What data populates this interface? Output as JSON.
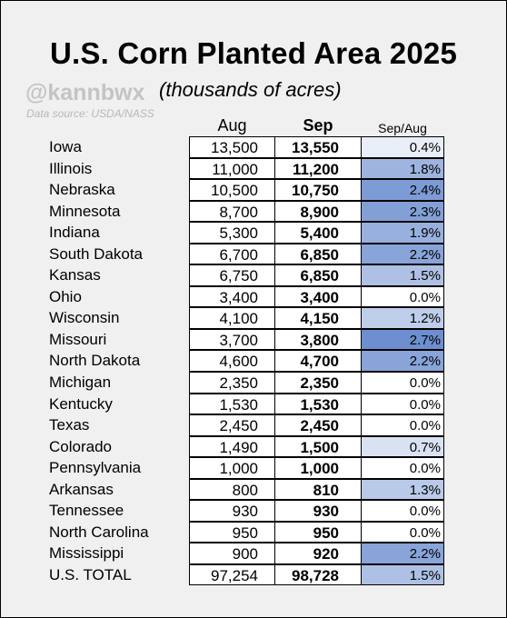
{
  "title": "U.S. Corn Planted Area 2025",
  "handle": "@kannbwx",
  "subtitle": "(thousands of acres)",
  "source": "Data source: USDA/NASS",
  "chart_data": {
    "type": "table",
    "columns": [
      "Aug",
      "Sep",
      "Sep/Aug"
    ],
    "rows": [
      {
        "state": "Iowa",
        "aug": "13,500",
        "sep": "13,550",
        "pct": "0.4%"
      },
      {
        "state": "Illinois",
        "aug": "11,000",
        "sep": "11,200",
        "pct": "1.8%"
      },
      {
        "state": "Nebraska",
        "aug": "10,500",
        "sep": "10,750",
        "pct": "2.4%"
      },
      {
        "state": "Minnesota",
        "aug": "8,700",
        "sep": "8,900",
        "pct": "2.3%"
      },
      {
        "state": "Indiana",
        "aug": "5,300",
        "sep": "5,400",
        "pct": "1.9%"
      },
      {
        "state": "South Dakota",
        "aug": "6,700",
        "sep": "6,850",
        "pct": "2.2%"
      },
      {
        "state": "Kansas",
        "aug": "6,750",
        "sep": "6,850",
        "pct": "1.5%"
      },
      {
        "state": "Ohio",
        "aug": "3,400",
        "sep": "3,400",
        "pct": "0.0%"
      },
      {
        "state": "Wisconsin",
        "aug": "4,100",
        "sep": "4,150",
        "pct": "1.2%"
      },
      {
        "state": "Missouri",
        "aug": "3,700",
        "sep": "3,800",
        "pct": "2.7%"
      },
      {
        "state": "North Dakota",
        "aug": "4,600",
        "sep": "4,700",
        "pct": "2.2%"
      },
      {
        "state": "Michigan",
        "aug": "2,350",
        "sep": "2,350",
        "pct": "0.0%"
      },
      {
        "state": "Kentucky",
        "aug": "1,530",
        "sep": "1,530",
        "pct": "0.0%"
      },
      {
        "state": "Texas",
        "aug": "2,450",
        "sep": "2,450",
        "pct": "0.0%"
      },
      {
        "state": "Colorado",
        "aug": "1,490",
        "sep": "1,500",
        "pct": "0.7%"
      },
      {
        "state": "Pennsylvania",
        "aug": "1,000",
        "sep": "1,000",
        "pct": "0.0%"
      },
      {
        "state": "Arkansas",
        "aug": "800",
        "sep": "810",
        "pct": "1.3%"
      },
      {
        "state": "Tennessee",
        "aug": "930",
        "sep": "930",
        "pct": "0.0%"
      },
      {
        "state": "North Carolina",
        "aug": "950",
        "sep": "950",
        "pct": "0.0%"
      },
      {
        "state": "Mississippi",
        "aug": "900",
        "sep": "920",
        "pct": "2.2%"
      },
      {
        "state": "U.S. TOTAL",
        "aug": "97,254",
        "sep": "98,728",
        "pct": "1.5%"
      }
    ],
    "heat_color_low": "#ffffff",
    "heat_color_high": "#6d8fcf",
    "heat_max": 2.7
  }
}
